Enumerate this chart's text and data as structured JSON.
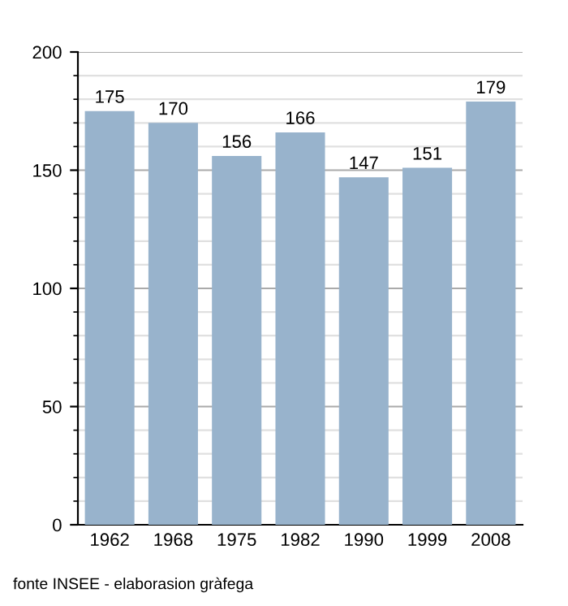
{
  "chart_data": {
    "type": "bar",
    "categories": [
      "1962",
      "1968",
      "1975",
      "1982",
      "1990",
      "1999",
      "2008"
    ],
    "values": [
      175,
      170,
      156,
      166,
      147,
      151,
      179
    ],
    "color": "#98b3cc",
    "data_labels": true,
    "ylim": [
      0,
      200
    ],
    "yticks": [
      0,
      50,
      100,
      150,
      200
    ],
    "grid": "y",
    "legend": false,
    "annotations": [
      "fonte INSEE - elaborasion gràfega"
    ]
  }
}
